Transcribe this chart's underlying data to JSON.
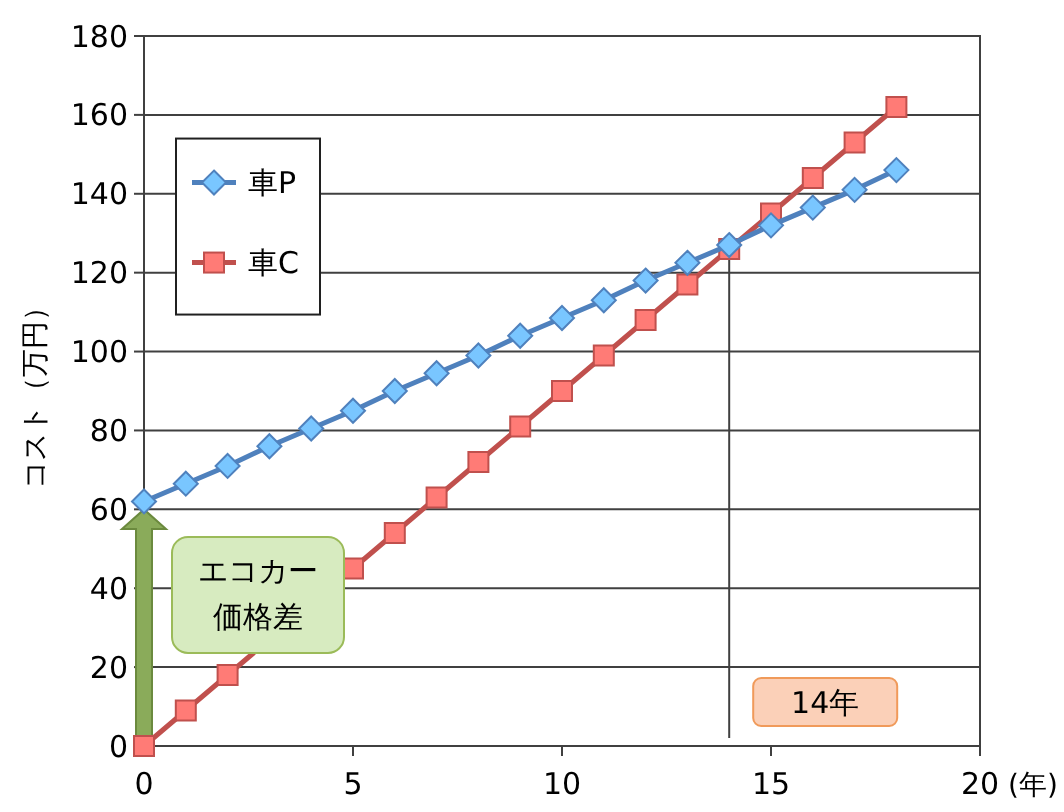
{
  "chart_data": {
    "type": "line",
    "ylabel": "コスト（万円）",
    "xlabel": "(年)",
    "x": [
      0,
      1,
      2,
      3,
      4,
      5,
      6,
      7,
      8,
      9,
      10,
      11,
      12,
      13,
      14,
      15,
      16,
      17,
      18
    ],
    "series": [
      {
        "name": "車P",
        "color": "#4f81bd",
        "marker": "diamond",
        "values": [
          62,
          66.5,
          71,
          76,
          80.5,
          85,
          90,
          94.5,
          99,
          104,
          108.5,
          113,
          118,
          122.5,
          127,
          132,
          136.5,
          141,
          146
        ]
      },
      {
        "name": "車C",
        "color": "#c0504d",
        "marker": "square",
        "values": [
          0,
          9,
          18,
          null,
          null,
          45,
          54,
          63,
          72,
          81,
          90,
          99,
          108,
          117,
          126,
          135,
          144,
          153,
          162
        ]
      }
    ],
    "xlim": [
      0,
      20
    ],
    "xticks": [
      0,
      5,
      10,
      15,
      20
    ],
    "ylim": [
      0,
      180
    ],
    "yticks": [
      0,
      20,
      40,
      60,
      80,
      100,
      120,
      140,
      160,
      180
    ],
    "grid": "y",
    "legend": "top left",
    "ref_lines": [
      {
        "axis": "x",
        "value": 14,
        "label": "14年",
        "color": "#404040"
      }
    ],
    "annotations": [
      "エコカー価格差"
    ]
  }
}
